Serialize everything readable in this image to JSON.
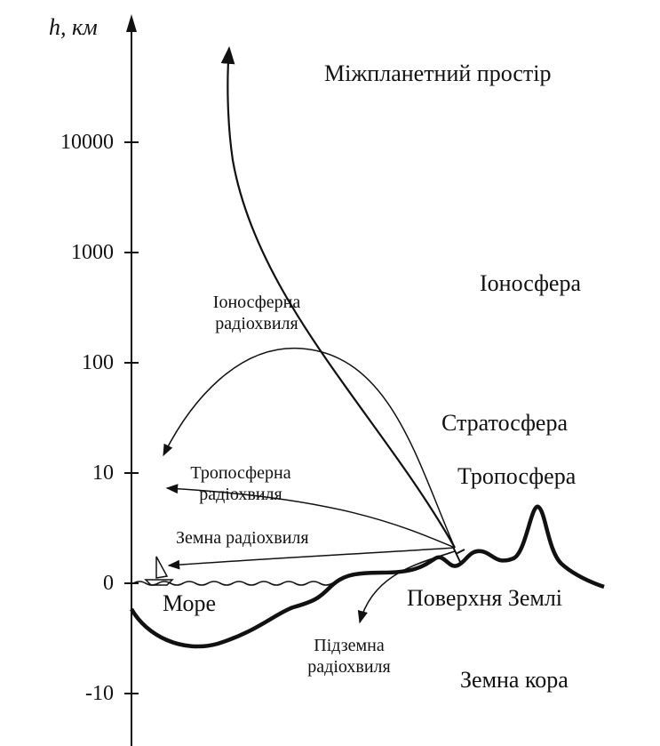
{
  "axis": {
    "label": "h, км",
    "ticks": [
      {
        "label": "10000",
        "value": 10000
      },
      {
        "label": "1000",
        "value": 1000
      },
      {
        "label": "100",
        "value": 100
      },
      {
        "label": "10",
        "value": 10
      },
      {
        "label": "0",
        "value": 0
      },
      {
        "label": "-10",
        "value": -10
      }
    ]
  },
  "regions": {
    "interplanetary": "Міжпланетний простір",
    "ionosphere": "Іоносфера",
    "stratosphere": "Стратосфера",
    "troposphere": "Тропосфера",
    "earth_surface": "Поверхня Землі",
    "earth_crust": "Земна кора",
    "sea": "Море"
  },
  "waves": {
    "ionospheric_line1": "Іоносферна",
    "ionospheric_line2": "радіохвиля",
    "tropospheric_line1": "Тропосферна",
    "tropospheric_line2": "радіохвиля",
    "ground": "Земна радіохвиля",
    "underground_line1": "Підземна",
    "underground_line2": "радіохвиля"
  }
}
